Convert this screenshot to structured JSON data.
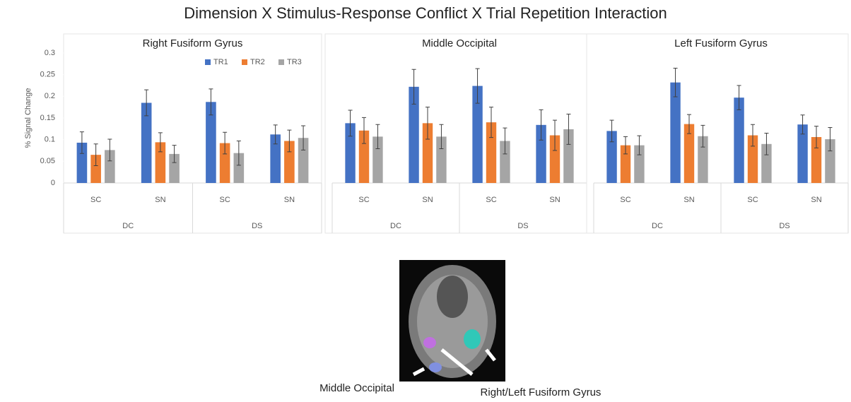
{
  "title": "Dimension X Stimulus-Response Conflict X Trial Repetition Interaction",
  "image_labels": [
    "Middle Occipital",
    "Right/Left Fusiform Gyrus"
  ],
  "chart_data": [
    {
      "type": "bar",
      "title": "Right Fusiform Gyrus",
      "ylabel": "% Signal Change",
      "categories": [
        "SC",
        "SN",
        "SC",
        "SN"
      ],
      "groups": [
        "DC",
        "DS"
      ],
      "ylim": [
        0,
        0.3
      ],
      "yticks": [
        0,
        0.05,
        0.1,
        0.15,
        0.2,
        0.25,
        0.3
      ],
      "legend": "top-right",
      "series": [
        {
          "name": "TR1",
          "color": "#4472c4",
          "values": [
            0.093,
            0.185,
            0.187,
            0.112
          ],
          "errors": [
            0.025,
            0.03,
            0.03,
            0.022
          ]
        },
        {
          "name": "TR2",
          "color": "#ed7d31",
          "values": [
            0.065,
            0.094,
            0.092,
            0.097
          ],
          "errors": [
            0.025,
            0.022,
            0.025,
            0.025
          ]
        },
        {
          "name": "TR3",
          "color": "#a5a5a5",
          "values": [
            0.076,
            0.067,
            0.069,
            0.104
          ],
          "errors": [
            0.025,
            0.02,
            0.028,
            0.028
          ]
        }
      ]
    },
    {
      "type": "bar",
      "title": "Middle Occipital",
      "categories": [
        "SC",
        "SN",
        "SC",
        "SN"
      ],
      "groups": [
        "DC",
        "DS"
      ],
      "ylim": [
        0,
        0.3
      ],
      "series": [
        {
          "name": "TR1",
          "color": "#4472c4",
          "values": [
            0.138,
            0.222,
            0.224,
            0.134
          ],
          "errors": [
            0.03,
            0.04,
            0.04,
            0.035
          ]
        },
        {
          "name": "TR2",
          "color": "#ed7d31",
          "values": [
            0.121,
            0.138,
            0.14,
            0.11
          ],
          "errors": [
            0.03,
            0.037,
            0.035,
            0.035
          ]
        },
        {
          "name": "TR3",
          "color": "#a5a5a5",
          "values": [
            0.107,
            0.107,
            0.097,
            0.124
          ],
          "errors": [
            0.028,
            0.028,
            0.03,
            0.035
          ]
        }
      ]
    },
    {
      "type": "bar",
      "title": "Left Fusiform Gyrus",
      "categories": [
        "SC",
        "SN",
        "SC",
        "SN"
      ],
      "groups": [
        "DC",
        "DS"
      ],
      "ylim": [
        0,
        0.3
      ],
      "series": [
        {
          "name": "TR1",
          "color": "#4472c4",
          "values": [
            0.12,
            0.232,
            0.197,
            0.135
          ],
          "errors": [
            0.025,
            0.033,
            0.028,
            0.022
          ]
        },
        {
          "name": "TR2",
          "color": "#ed7d31",
          "values": [
            0.087,
            0.136,
            0.11,
            0.106
          ],
          "errors": [
            0.02,
            0.022,
            0.025,
            0.025
          ]
        },
        {
          "name": "TR3",
          "color": "#a5a5a5",
          "values": [
            0.087,
            0.108,
            0.09,
            0.101
          ],
          "errors": [
            0.022,
            0.025,
            0.025,
            0.027
          ]
        }
      ]
    }
  ]
}
